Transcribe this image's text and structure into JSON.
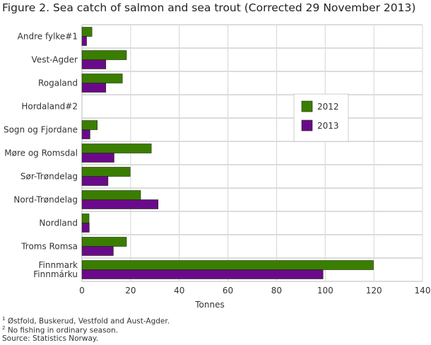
{
  "chart_data": {
    "type": "bar",
    "orientation": "horizontal",
    "title": "Figure 2. Sea catch of salmon and sea trout (Corrected 29 November 2013)",
    "xlabel": "Tonnes",
    "ylabel": "",
    "xlim": [
      0,
      140
    ],
    "xticks": [
      0,
      20,
      40,
      60,
      80,
      100,
      120,
      140
    ],
    "grid": true,
    "legend_position": "right",
    "categories": [
      "Andre fylke#1",
      "Vest-Agder",
      "Rogaland",
      "Hordaland#2",
      "Sogn og Fjordane",
      "Møre og Romsdal",
      "Sør-Trøndelag",
      "Nord-Trøndelag",
      "Nordland",
      "Troms Romsa",
      "Finnmark\nFinnmárku"
    ],
    "series": [
      {
        "name": "2012",
        "color": "#3a7e00",
        "values": [
          4.1,
          18.3,
          16.6,
          0,
          6.3,
          28.5,
          19.8,
          24.1,
          2.9,
          18.3,
          119.8
        ]
      },
      {
        "name": "2013",
        "color": "#6a0a8a",
        "values": [
          1.9,
          9.8,
          9.8,
          0,
          3.3,
          13.2,
          10.7,
          31.3,
          3.0,
          12.9,
          99.1
        ]
      }
    ]
  },
  "footnotes": {
    "note1_mark": "1",
    "note1": "Østfold, Buskerud, Vestfold and Aust-Agder.",
    "note2_mark": "2",
    "note2": "No fishing in ordinary season.",
    "source": "Source: Statistics Norway."
  }
}
